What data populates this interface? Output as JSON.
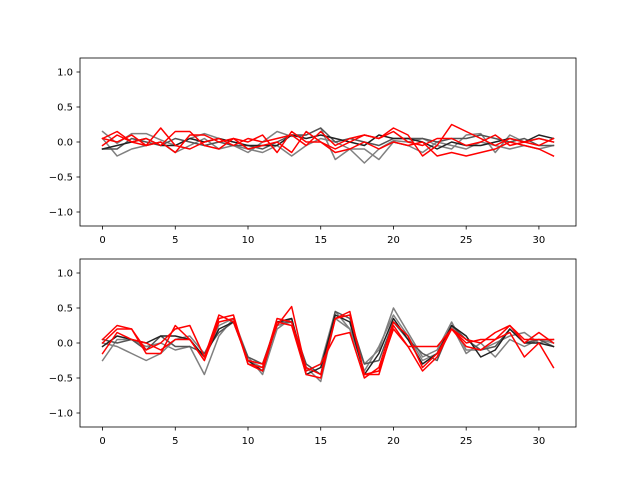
{
  "chart_data": [
    {
      "type": "line",
      "title": "",
      "xlabel": "",
      "ylabel": "",
      "xlim": [
        -1.55,
        32.55
      ],
      "ylim": [
        -1.2,
        1.2
      ],
      "x_ticks": [
        0,
        5,
        10,
        15,
        20,
        25,
        30
      ],
      "y_ticks": [
        1.0,
        0.5,
        0.0,
        -0.5,
        -1.0
      ],
      "x_tick_labels": [
        "0",
        "5",
        "10",
        "15",
        "20",
        "25",
        "30"
      ],
      "y_tick_labels": [
        "1.0",
        "0.5",
        "0.0",
        "−0.5",
        "−1.0"
      ],
      "grid": false,
      "x": [
        0,
        1,
        2,
        3,
        4,
        5,
        6,
        7,
        8,
        9,
        10,
        11,
        12,
        13,
        14,
        15,
        16,
        17,
        18,
        19,
        20,
        21,
        22,
        23,
        24,
        25,
        26,
        27,
        28,
        29,
        30,
        31
      ],
      "series": [
        {
          "color": "#808080",
          "values": [
            0.15,
            -0.02,
            0.12,
            0.12,
            0.03,
            -0.05,
            0.05,
            0.12,
            0.05,
            -0.05,
            -0.15,
            0.0,
            0.15,
            0.08,
            0.1,
            0.2,
            -0.25,
            -0.1,
            -0.3,
            -0.1,
            0.02,
            0.0,
            0.05,
            -0.05,
            -0.1,
            0.1,
            0.12,
            -0.15,
            0.1,
            0.0,
            0.05,
            0.0
          ]
        },
        {
          "color": "#808080",
          "values": [
            0.05,
            -0.2,
            -0.1,
            -0.05,
            0.0,
            -0.15,
            -0.05,
            0.05,
            -0.1,
            -0.05,
            -0.1,
            -0.15,
            -0.05,
            -0.2,
            -0.05,
            0.05,
            0.0,
            -0.1,
            -0.1,
            -0.25,
            0.0,
            -0.05,
            -0.15,
            0.0,
            -0.05,
            -0.1,
            0.0,
            -0.05,
            -0.1,
            -0.05,
            -0.1,
            -0.05
          ]
        },
        {
          "color": "#555555",
          "values": [
            -0.1,
            -0.1,
            0.05,
            0.0,
            -0.05,
            0.05,
            0.0,
            -0.05,
            0.0,
            -0.05,
            -0.05,
            -0.1,
            0.0,
            0.1,
            0.1,
            0.2,
            0.0,
            0.05,
            0.0,
            -0.05,
            0.05,
            0.05,
            0.05,
            0.0,
            0.05,
            0.05,
            0.1,
            0.05,
            0.0,
            0.05,
            -0.05,
            -0.05
          ]
        },
        {
          "color": "#222222",
          "values": [
            -0.1,
            -0.05,
            0.0,
            0.05,
            -0.05,
            -0.05,
            0.05,
            0.0,
            0.05,
            0.0,
            -0.05,
            -0.05,
            -0.05,
            0.1,
            0.05,
            0.1,
            0.05,
            0.0,
            -0.05,
            0.1,
            0.05,
            0.05,
            0.0,
            -0.1,
            0.0,
            -0.05,
            -0.05,
            0.0,
            0.05,
            0.0,
            0.1,
            0.05
          ]
        },
        {
          "color": "#ff0000",
          "values": [
            -0.05,
            0.1,
            0.0,
            0.05,
            -0.05,
            0.15,
            0.15,
            -0.05,
            -0.1,
            0.05,
            0.0,
            0.1,
            -0.15,
            0.15,
            0.0,
            0.0,
            -0.1,
            0.0,
            0.1,
            0.05,
            0.2,
            0.1,
            -0.2,
            -0.05,
            0.25,
            0.15,
            0.05,
            -0.05,
            0.05,
            0.0,
            -0.05,
            0.05
          ]
        },
        {
          "color": "#ff0000",
          "values": [
            0.05,
            0.0,
            0.1,
            -0.05,
            0.0,
            -0.15,
            0.1,
            0.1,
            0.0,
            0.05,
            -0.1,
            -0.05,
            0.0,
            -0.15,
            0.15,
            0.0,
            -0.15,
            -0.1,
            0.0,
            -0.1,
            0.0,
            -0.05,
            0.0,
            -0.2,
            -0.15,
            -0.2,
            -0.15,
            -0.1,
            0.0,
            -0.05,
            -0.1,
            -0.2
          ]
        },
        {
          "color": "#ff0000",
          "values": [
            0.05,
            0.15,
            0.0,
            -0.05,
            0.2,
            -0.05,
            -0.1,
            0.0,
            0.05,
            -0.05,
            0.05,
            0.0,
            0.05,
            0.1,
            -0.05,
            0.15,
            -0.05,
            0.05,
            0.1,
            0.05,
            0.15,
            0.0,
            -0.05,
            0.05,
            0.05,
            -0.05,
            0.0,
            0.1,
            -0.05,
            0.0,
            0.05,
            0.0
          ]
        }
      ]
    },
    {
      "type": "line",
      "title": "",
      "xlabel": "",
      "ylabel": "",
      "xlim": [
        -1.55,
        32.55
      ],
      "ylim": [
        -1.2,
        1.2
      ],
      "x_ticks": [
        0,
        5,
        10,
        15,
        20,
        25,
        30
      ],
      "y_ticks": [
        1.0,
        0.5,
        0.0,
        -0.5,
        -1.0
      ],
      "x_tick_labels": [
        "0",
        "5",
        "10",
        "15",
        "20",
        "25",
        "30"
      ],
      "y_tick_labels": [
        "1.0",
        "0.5",
        "0.0",
        "−0.5",
        "−1.0"
      ],
      "grid": false,
      "x": [
        0,
        1,
        2,
        3,
        4,
        5,
        6,
        7,
        8,
        9,
        10,
        11,
        12,
        13,
        14,
        15,
        16,
        17,
        18,
        19,
        20,
        21,
        22,
        23,
        24,
        25,
        26,
        27,
        28,
        29,
        30,
        31
      ],
      "series": [
        {
          "color": "#808080",
          "values": [
            -0.25,
            0.05,
            0.05,
            -0.05,
            0.0,
            -0.1,
            -0.05,
            -0.45,
            0.1,
            0.35,
            -0.2,
            -0.45,
            0.2,
            0.35,
            -0.4,
            -0.3,
            0.45,
            0.2,
            -0.3,
            -0.1,
            0.5,
            0.15,
            -0.2,
            -0.1,
            0.3,
            -0.1,
            -0.1,
            0.0,
            0.1,
            0.15,
            0.0,
            0.05
          ]
        },
        {
          "color": "#808080",
          "values": [
            0.0,
            -0.05,
            -0.15,
            -0.25,
            -0.15,
            0.05,
            0.1,
            -0.15,
            0.25,
            0.35,
            -0.25,
            -0.35,
            0.25,
            0.3,
            -0.35,
            -0.55,
            0.35,
            0.2,
            -0.4,
            -0.05,
            0.4,
            0.1,
            -0.25,
            -0.15,
            0.25,
            -0.15,
            0.0,
            -0.2,
            0.05,
            -0.05,
            0.05,
            0.0
          ]
        },
        {
          "color": "#555555",
          "values": [
            0.05,
            0.0,
            0.05,
            -0.1,
            0.1,
            -0.05,
            -0.05,
            -0.15,
            0.15,
            0.3,
            -0.2,
            -0.3,
            0.3,
            0.3,
            -0.3,
            -0.45,
            0.45,
            0.35,
            -0.3,
            -0.25,
            0.3,
            0.05,
            -0.15,
            -0.25,
            0.25,
            0.05,
            -0.1,
            -0.05,
            0.2,
            0.0,
            0.05,
            -0.05
          ]
        },
        {
          "color": "#222222",
          "values": [
            -0.05,
            0.1,
            0.05,
            0.0,
            0.1,
            0.1,
            0.05,
            -0.2,
            0.2,
            0.3,
            -0.25,
            -0.4,
            0.3,
            0.35,
            -0.45,
            -0.35,
            0.4,
            0.3,
            -0.45,
            -0.15,
            0.35,
            0.05,
            -0.3,
            -0.15,
            0.25,
            0.1,
            -0.2,
            -0.1,
            0.2,
            0.0,
            0.0,
            -0.05
          ]
        },
        {
          "color": "#ff0000",
          "values": [
            0.05,
            0.25,
            0.2,
            -0.1,
            0.0,
            0.2,
            0.25,
            -0.2,
            0.4,
            0.3,
            -0.25,
            -0.3,
            0.25,
            0.52,
            -0.4,
            -0.3,
            0.1,
            0.15,
            -0.5,
            -0.35,
            0.3,
            0.1,
            -0.35,
            -0.15,
            0.2,
            0.0,
            0.05,
            0.05,
            0.25,
            0.0,
            0.15,
            0.0
          ]
        },
        {
          "color": "#ff0000",
          "values": [
            -0.15,
            0.15,
            0.05,
            0.0,
            -0.1,
            0.05,
            0.05,
            -0.25,
            0.3,
            0.35,
            -0.3,
            -0.35,
            0.35,
            0.3,
            -0.35,
            -0.45,
            0.35,
            0.4,
            -0.45,
            -0.45,
            0.25,
            -0.05,
            -0.05,
            -0.05,
            0.2,
            -0.05,
            -0.1,
            0.05,
            0.15,
            -0.2,
            0.0,
            -0.35
          ]
        },
        {
          "color": "#ff0000",
          "values": [
            0.0,
            0.2,
            0.2,
            -0.15,
            -0.15,
            0.25,
            0.05,
            -0.25,
            0.35,
            0.4,
            -0.3,
            -0.4,
            0.3,
            0.25,
            -0.45,
            -0.5,
            0.35,
            0.45,
            -0.45,
            -0.4,
            0.2,
            -0.05,
            -0.4,
            -0.2,
            0.2,
            0.05,
            0.0,
            0.15,
            0.25,
            0.05,
            0.05,
            0.05
          ]
        }
      ]
    }
  ]
}
